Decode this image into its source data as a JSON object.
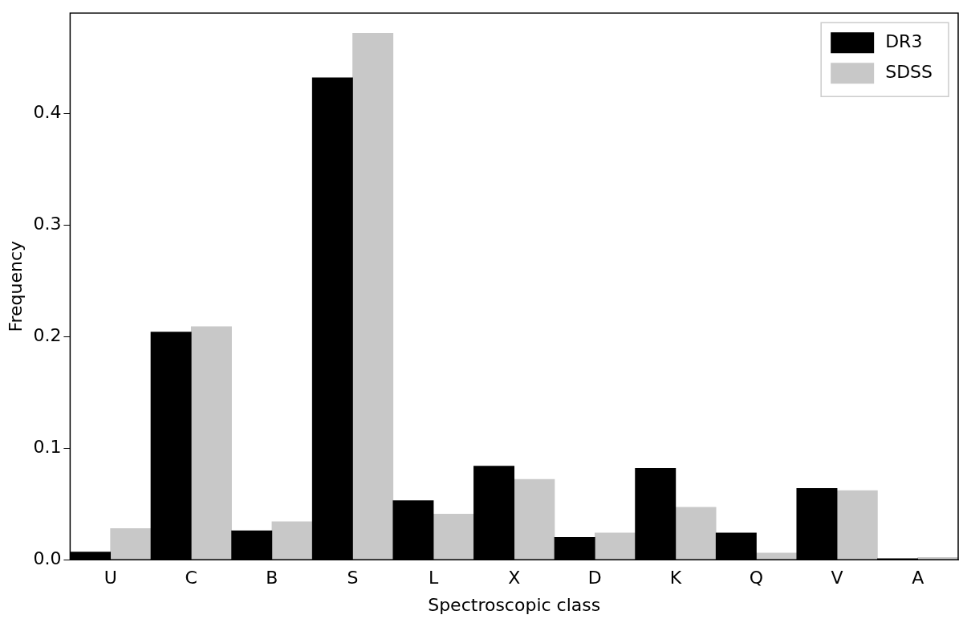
{
  "chart_data": {
    "type": "bar",
    "xlabel": "Spectroscopic class",
    "ylabel": "Frequency",
    "categories": [
      "U",
      "C",
      "B",
      "S",
      "L",
      "X",
      "D",
      "K",
      "Q",
      "V",
      "A"
    ],
    "series": [
      {
        "name": "DR3",
        "color": "#000000",
        "values": [
          0.007,
          0.204,
          0.026,
          0.432,
          0.053,
          0.084,
          0.02,
          0.082,
          0.024,
          0.064,
          0.001
        ]
      },
      {
        "name": "SDSS",
        "color": "#c8c8c8",
        "values": [
          0.028,
          0.209,
          0.034,
          0.472,
          0.041,
          0.072,
          0.024,
          0.047,
          0.006,
          0.062,
          0.002
        ]
      }
    ],
    "ylim": [
      0,
      0.49
    ],
    "yticks": [
      {
        "value": 0,
        "label": "0.0"
      },
      0.1,
      0.2,
      0.3,
      0.4
    ],
    "legend": "top right"
  }
}
